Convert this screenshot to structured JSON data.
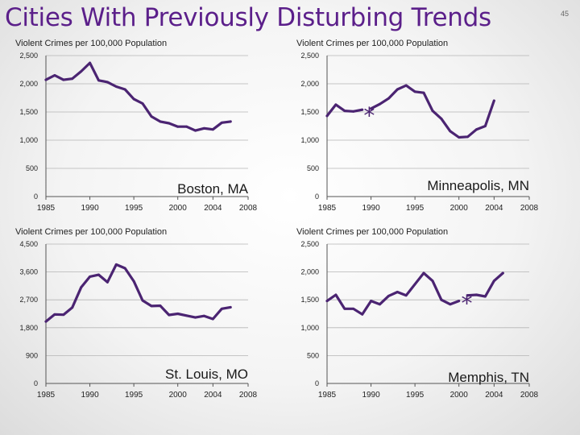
{
  "slide": {
    "title": "Cities With Previously Disturbing Trends",
    "page_number": "45"
  },
  "colors": {
    "title": "#5b1f8a",
    "series_line": "#4b2472",
    "grid": "#b5b5b5",
    "axis_text": "#222222"
  },
  "chart_data": [
    {
      "type": "line",
      "title": "Boston, MA",
      "ylabel": "Violent Crimes per 100,000 Population",
      "xlabel": "",
      "ylim": [
        0,
        2500
      ],
      "yticks": [
        0,
        500,
        1000,
        1500,
        2000,
        2500
      ],
      "ytick_labels": [
        "0",
        "500",
        "1,000",
        "1,500",
        "2,000",
        "2,500"
      ],
      "xlim": [
        1985,
        2008
      ],
      "xticks": [
        1985,
        1990,
        1995,
        2000,
        2004,
        2008
      ],
      "xtick_labels": [
        "1985",
        "1990",
        "1995",
        "2000",
        "2004",
        "2008"
      ],
      "grid": true,
      "segments": [
        [
          [
            1985,
            2070
          ],
          [
            1986,
            2150
          ],
          [
            1987,
            2070
          ],
          [
            1988,
            2090
          ],
          [
            1989,
            2220
          ],
          [
            1990,
            2370
          ],
          [
            1991,
            2060
          ],
          [
            1992,
            2030
          ],
          [
            1993,
            1950
          ],
          [
            1994,
            1900
          ],
          [
            1995,
            1730
          ],
          [
            1996,
            1650
          ],
          [
            1997,
            1420
          ],
          [
            1998,
            1330
          ],
          [
            1999,
            1300
          ],
          [
            2000,
            1240
          ],
          [
            2001,
            1240
          ],
          [
            2002,
            1170
          ],
          [
            2003,
            1210
          ],
          [
            2004,
            1190
          ],
          [
            2005,
            1310
          ],
          [
            2006,
            1330
          ]
        ]
      ],
      "annotations": []
    },
    {
      "type": "line",
      "title": "Minneapolis, MN",
      "ylabel": "Violent Crimes per 100,000 Population",
      "xlabel": "",
      "ylim": [
        0,
        2500
      ],
      "yticks": [
        0,
        500,
        1000,
        1500,
        2000,
        2500
      ],
      "ytick_labels": [
        "0",
        "500",
        "1,000",
        "1,500",
        "2,000",
        "2,500"
      ],
      "xlim": [
        1985,
        2008
      ],
      "xticks": [
        1985,
        1990,
        1995,
        2000,
        2004,
        2008
      ],
      "xtick_labels": [
        "1985",
        "1990",
        "1995",
        "2000",
        "2004",
        "2008"
      ],
      "grid": true,
      "segments": [
        [
          [
            1985,
            1430
          ],
          [
            1986,
            1630
          ],
          [
            1987,
            1520
          ],
          [
            1988,
            1510
          ],
          [
            1989,
            1540
          ]
        ],
        [
          [
            1990,
            1560
          ],
          [
            1991,
            1640
          ],
          [
            1992,
            1740
          ],
          [
            1993,
            1900
          ],
          [
            1994,
            1970
          ],
          [
            1995,
            1860
          ],
          [
            1996,
            1840
          ],
          [
            1997,
            1520
          ],
          [
            1998,
            1380
          ],
          [
            1999,
            1160
          ],
          [
            2000,
            1050
          ],
          [
            2001,
            1060
          ],
          [
            2002,
            1190
          ],
          [
            2003,
            1250
          ],
          [
            2004,
            1700
          ]
        ]
      ],
      "annotations": [
        {
          "text": "*",
          "x": 1989.8,
          "y": 1500
        }
      ]
    },
    {
      "type": "line",
      "title": "St. Louis, MO",
      "ylabel": "Violent Crimes per 100,000 Population",
      "xlabel": "",
      "ylim": [
        0,
        4500
      ],
      "yticks": [
        0,
        900,
        1800,
        2700,
        3600,
        4500
      ],
      "ytick_labels": [
        "0",
        "900",
        "1,800",
        "2,700",
        "3,600",
        "4,500"
      ],
      "xlim": [
        1985,
        2008
      ],
      "xticks": [
        1985,
        1990,
        1995,
        2000,
        2004,
        2008
      ],
      "xtick_labels": [
        "1985",
        "1990",
        "1995",
        "2000",
        "2004",
        "2008"
      ],
      "grid": true,
      "segments": [
        [
          [
            1985,
            2000
          ],
          [
            1986,
            2230
          ],
          [
            1987,
            2220
          ],
          [
            1988,
            2450
          ],
          [
            1989,
            3100
          ],
          [
            1990,
            3450
          ],
          [
            1991,
            3510
          ],
          [
            1992,
            3270
          ],
          [
            1993,
            3840
          ],
          [
            1994,
            3720
          ],
          [
            1995,
            3300
          ],
          [
            1996,
            2680
          ],
          [
            1997,
            2500
          ],
          [
            1998,
            2510
          ],
          [
            1999,
            2210
          ],
          [
            2000,
            2250
          ],
          [
            2001,
            2190
          ],
          [
            2002,
            2130
          ],
          [
            2003,
            2180
          ],
          [
            2004,
            2080
          ],
          [
            2005,
            2410
          ],
          [
            2006,
            2460
          ]
        ]
      ],
      "annotations": []
    },
    {
      "type": "line",
      "title": "Memphis, TN",
      "ylabel": "Violent Crimes per 100,000 Population",
      "xlabel": "",
      "ylim": [
        0,
        2500
      ],
      "yticks": [
        0,
        500,
        1000,
        1500,
        2000,
        2500
      ],
      "ytick_labels": [
        "0",
        "500",
        "1,000",
        "1,500",
        "2,000",
        "2,500"
      ],
      "xlim": [
        1985,
        2008
      ],
      "xticks": [
        1985,
        1990,
        1995,
        2000,
        2004,
        2008
      ],
      "xtick_labels": [
        "1985",
        "1990",
        "1995",
        "2000",
        "2004",
        "2008"
      ],
      "grid": true,
      "segments": [
        [
          [
            1985,
            1480
          ],
          [
            1986,
            1590
          ],
          [
            1987,
            1340
          ],
          [
            1988,
            1340
          ],
          [
            1989,
            1240
          ],
          [
            1990,
            1480
          ],
          [
            1991,
            1420
          ],
          [
            1992,
            1570
          ],
          [
            1993,
            1640
          ],
          [
            1994,
            1580
          ],
          [
            1995,
            1780
          ],
          [
            1996,
            1980
          ],
          [
            1997,
            1840
          ],
          [
            1998,
            1500
          ],
          [
            1999,
            1420
          ],
          [
            2000,
            1480
          ]
        ],
        [
          [
            2001,
            1580
          ],
          [
            2002,
            1590
          ],
          [
            2003,
            1560
          ],
          [
            2004,
            1840
          ],
          [
            2005,
            1980
          ]
        ]
      ],
      "annotations": [
        {
          "text": "*",
          "x": 2000.9,
          "y": 1500
        }
      ]
    }
  ]
}
